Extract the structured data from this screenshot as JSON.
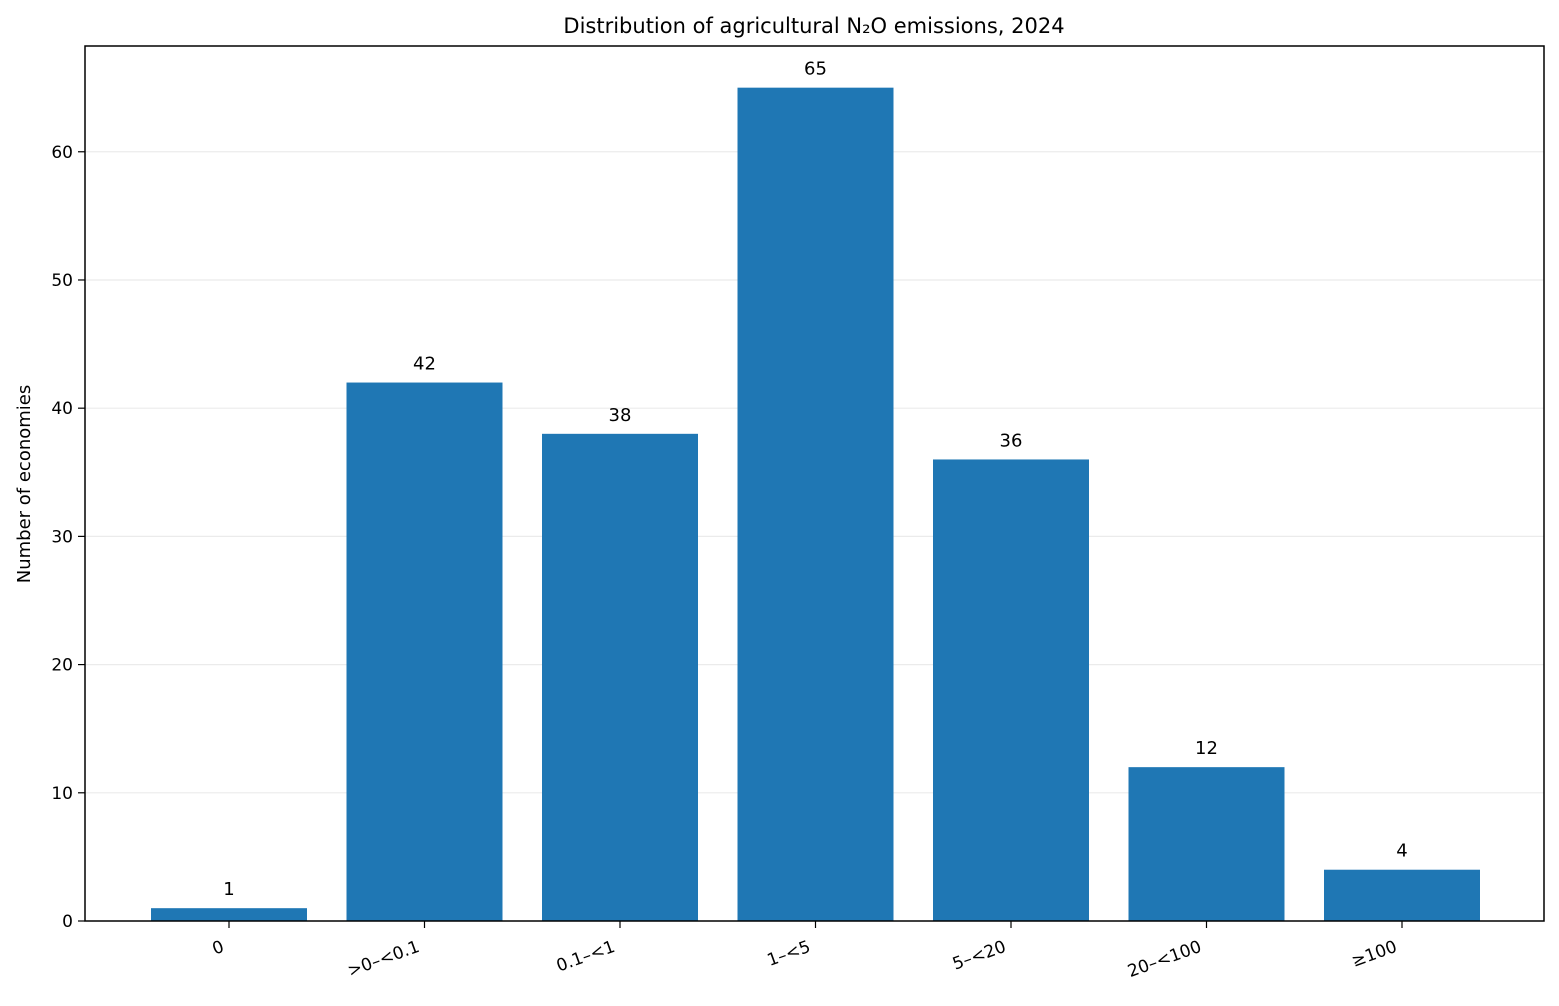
{
  "chart_data": {
    "type": "bar",
    "title": "Distribution of agricultural N₂O emissions, 2024",
    "xlabel": "",
    "ylabel": "Number of economies",
    "categories": [
      "0",
      ">0–<0.1",
      "0.1–<1",
      "1–<5",
      "5–<20",
      "20–<100",
      "≥100"
    ],
    "values": [
      1,
      42,
      38,
      65,
      36,
      12,
      4
    ],
    "ylim": [
      0,
      68.25
    ],
    "yticks": [
      0,
      10,
      20,
      30,
      40,
      50,
      60
    ],
    "grid": "y",
    "legend": "none",
    "colors": {
      "bar": "#1f77b4",
      "grid": "#ebebeb",
      "axis": "#000000"
    }
  }
}
